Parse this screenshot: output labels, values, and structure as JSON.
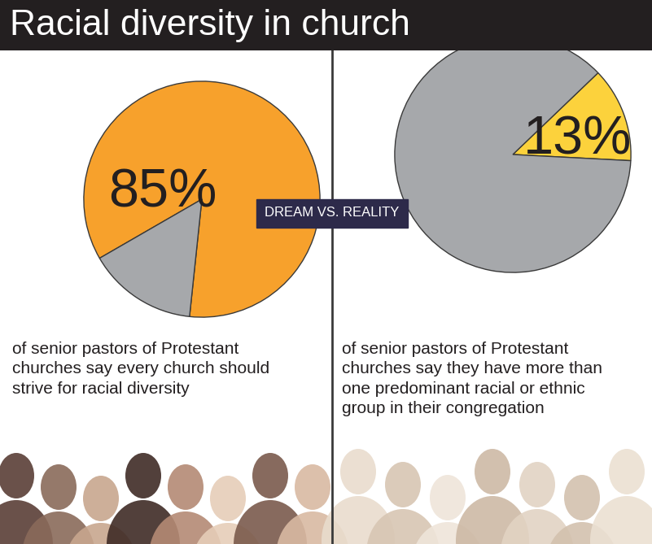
{
  "title": "Racial diversity in church",
  "annotation": "DREAM VS. REALITY",
  "chart_data": [
    {
      "type": "pie",
      "values": [
        85,
        15
      ],
      "value_labels": [
        "85%",
        null
      ],
      "colors": [
        "#f7a12c",
        "#a6a8ab"
      ],
      "caption": "of senior pastors of Protestant churches say every church should strive for racial diversity"
    },
    {
      "type": "pie",
      "values": [
        13,
        87
      ],
      "value_labels": [
        "13%",
        null
      ],
      "colors": [
        "#fcd23c",
        "#a6a8ab"
      ],
      "caption": "of senior pastors of Protestant churches say they have more than one predominant racial or ethnic group in their congregation"
    }
  ]
}
